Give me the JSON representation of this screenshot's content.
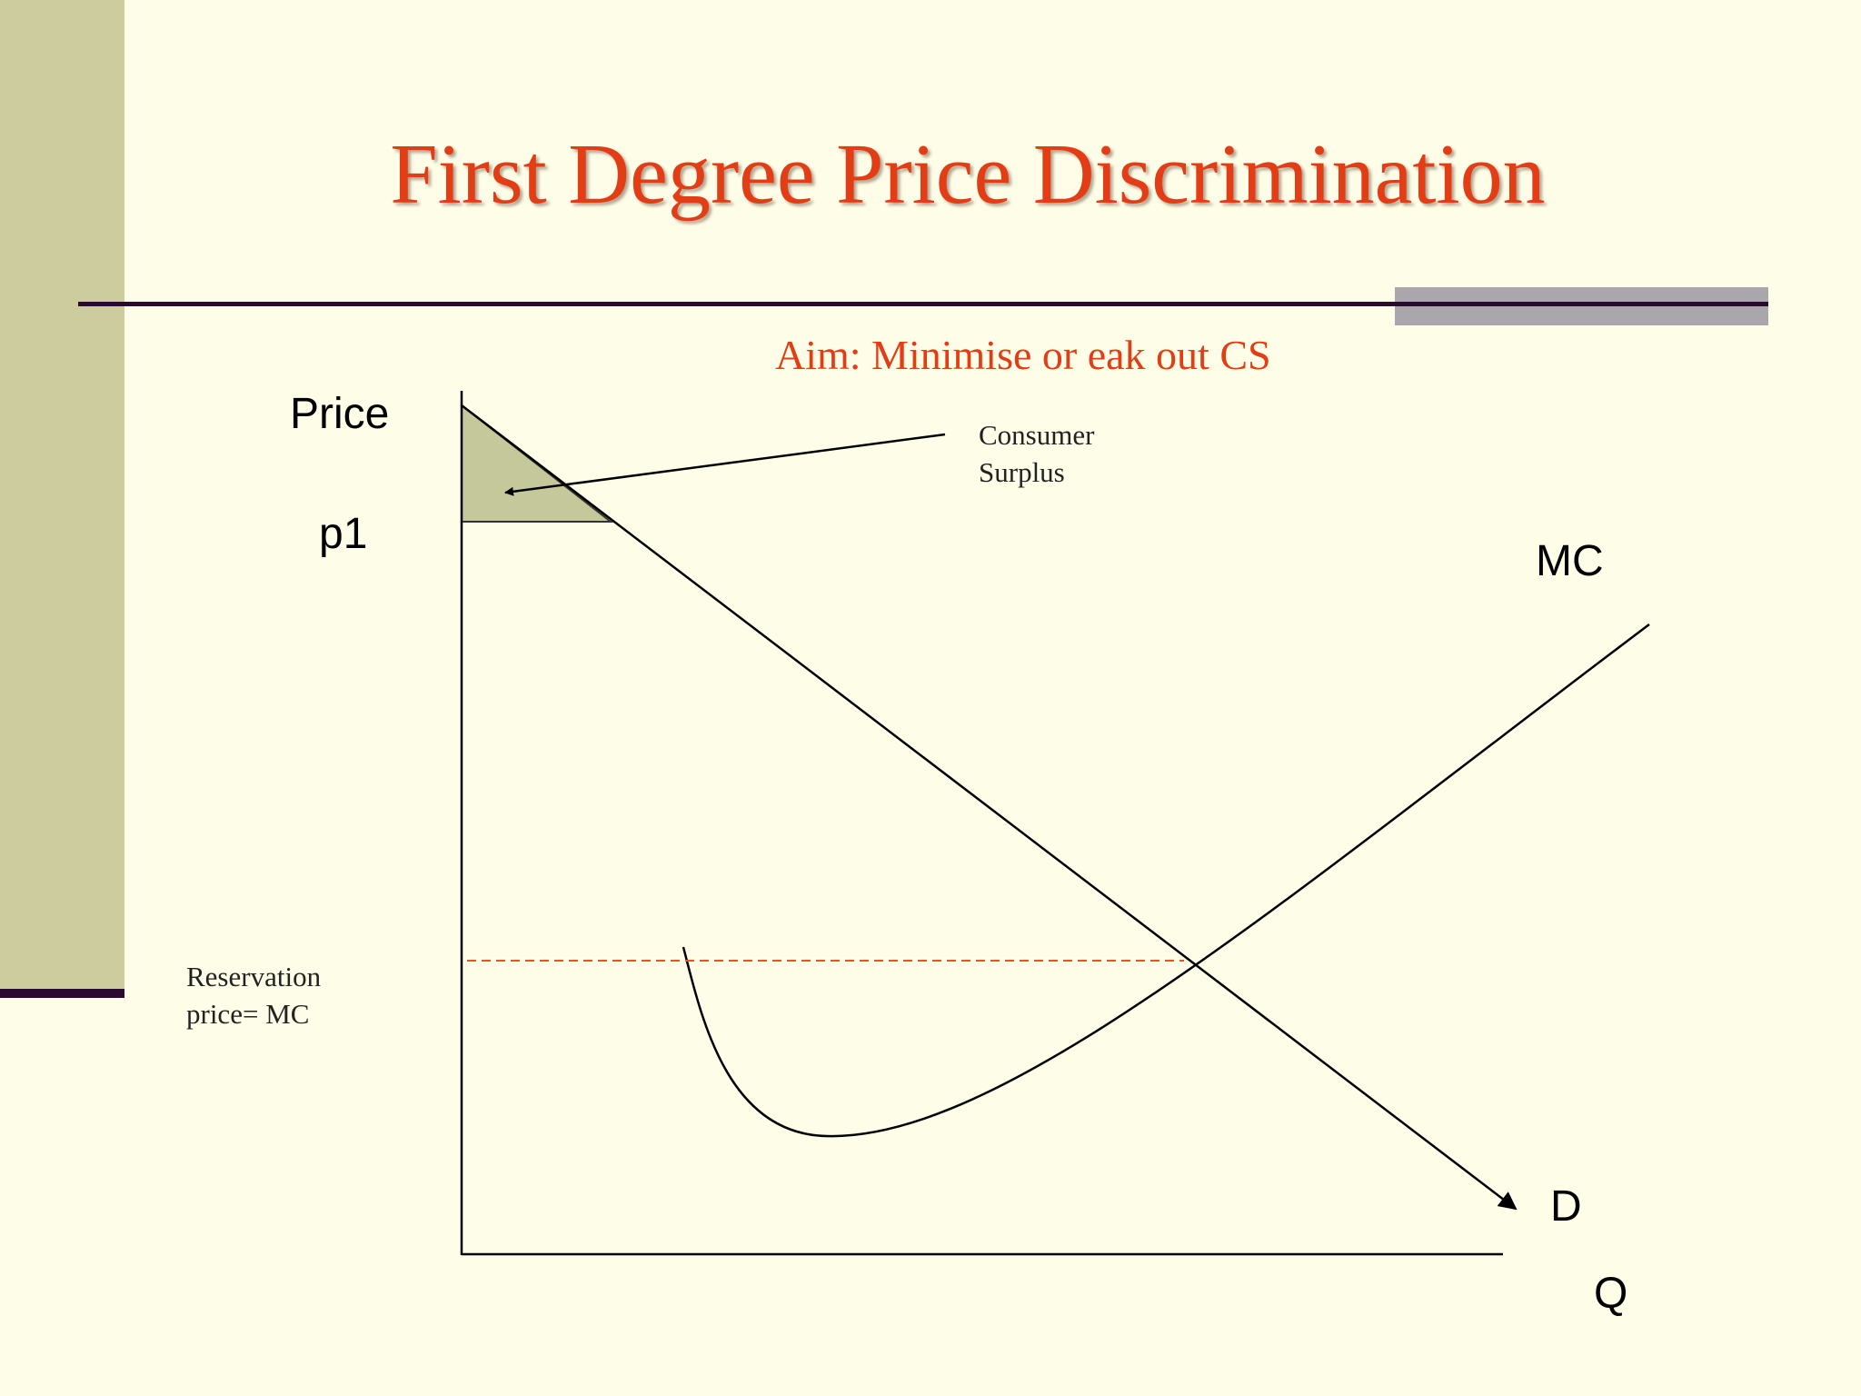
{
  "slide": {
    "title": "First Degree Price Discrimination",
    "subtitle": "Aim: Minimise or eak out CS"
  },
  "diagram": {
    "labels": {
      "price_axis": "Price",
      "p1": "p1",
      "mc_curve": "MC",
      "demand_curve": "D",
      "quantity_axis": "Q",
      "consumer_surplus_line1": "Consumer",
      "consumer_surplus_line2": "Surplus",
      "reservation_line1": "Reservation",
      "reservation_line2": "price=  MC"
    },
    "colors": {
      "background": "#fefee8",
      "side_band": "#cccc9e",
      "title": "#e33d16",
      "surplus_fill": "#c5c89b",
      "reservation_dash": "#e0562e"
    }
  }
}
